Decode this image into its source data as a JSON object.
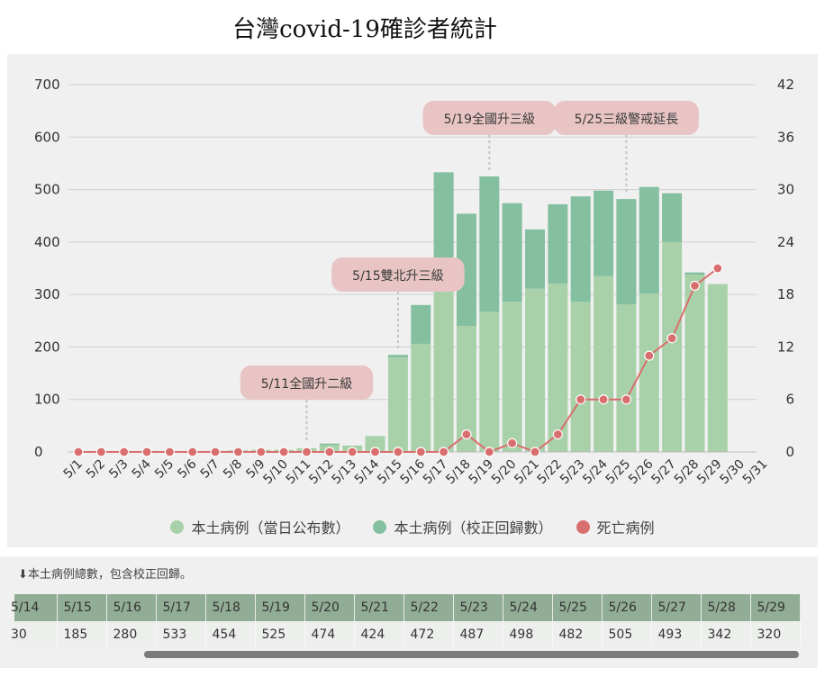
{
  "title": "台灣covid-19確診者統計",
  "chart_data": {
    "type": "bar",
    "categories": [
      "5/1",
      "5/2",
      "5/3",
      "5/4",
      "5/5",
      "5/6",
      "5/7",
      "5/8",
      "5/9",
      "5/10",
      "5/11",
      "5/12",
      "5/13",
      "5/14",
      "5/15",
      "5/16",
      "5/17",
      "5/18",
      "5/19",
      "5/20",
      "5/21",
      "5/22",
      "5/23",
      "5/24",
      "5/25",
      "5/26",
      "5/27",
      "5/28",
      "5/29",
      "5/30",
      "5/31"
    ],
    "series": [
      {
        "name": "本土病例（當日公布數）",
        "type": "bar",
        "axis": "left",
        "values": [
          1,
          0,
          0,
          2,
          1,
          0,
          2,
          3,
          4,
          4,
          7,
          13,
          11,
          29,
          180,
          206,
          333,
          240,
          267,
          286,
          311,
          321,
          286,
          335,
          281,
          302,
          400,
          338,
          320,
          null,
          null
        ]
      },
      {
        "name": "本土病例（校正回歸數）",
        "type": "bar",
        "axis": "left",
        "values": [
          0,
          0,
          0,
          0,
          0,
          0,
          0,
          0,
          0,
          0,
          0,
          3,
          1,
          1,
          5,
          74,
          200,
          214,
          258,
          188,
          113,
          151,
          201,
          163,
          201,
          203,
          93,
          4,
          0,
          null,
          null
        ]
      },
      {
        "name": "死亡病例",
        "type": "line",
        "axis": "right",
        "values": [
          0,
          0,
          0,
          0,
          0,
          0,
          0,
          0,
          0,
          0,
          0,
          0,
          0,
          0,
          0,
          0,
          0,
          2,
          0,
          1,
          0,
          2,
          6,
          6,
          6,
          11,
          13,
          19,
          21,
          null,
          null
        ]
      }
    ],
    "y_left_ticks": [
      0,
      100,
      200,
      300,
      400,
      500,
      600,
      700
    ],
    "y_left_lim": [
      0,
      700
    ],
    "y_right_ticks": [
      0,
      6,
      12,
      18,
      24,
      30,
      36,
      42
    ],
    "y_right_lim": [
      0,
      42
    ],
    "grid": true,
    "legend_position": "bottom-center",
    "colors": {
      "bar_today": "#a9d1a9",
      "bar_corrected": "#84bf9f",
      "death_line": "#d96e6e",
      "annotation_bg": "#e8c4c4"
    },
    "annotations": [
      {
        "label": "5/11全國升二級",
        "x": "5/11",
        "y": 0
      },
      {
        "label": "5/15雙北升三級",
        "x": "5/15",
        "y": 185
      },
      {
        "label": "5/19全國升三級",
        "x": "5/19",
        "y": 525
      },
      {
        "label": "5/25三級警戒延長",
        "x": "5/25",
        "y": 482
      }
    ]
  },
  "legend": [
    {
      "label": "本土病例（當日公布數）",
      "color": "#a9d1a9"
    },
    {
      "label": "本土病例（校正回歸數）",
      "color": "#84bf9f"
    },
    {
      "label": "死亡病例",
      "color": "#d96e6e"
    }
  ],
  "table": {
    "note": "⬇本土病例總數，包含校正回歸。",
    "dates": [
      "5/14",
      "5/15",
      "5/16",
      "5/17",
      "5/18",
      "5/19",
      "5/20",
      "5/21",
      "5/22",
      "5/23",
      "5/24",
      "5/25",
      "5/26",
      "5/27",
      "5/28",
      "5/29"
    ],
    "totals": [
      "30",
      "185",
      "280",
      "533",
      "454",
      "525",
      "474",
      "424",
      "472",
      "487",
      "498",
      "482",
      "505",
      "493",
      "342",
      "320"
    ]
  }
}
